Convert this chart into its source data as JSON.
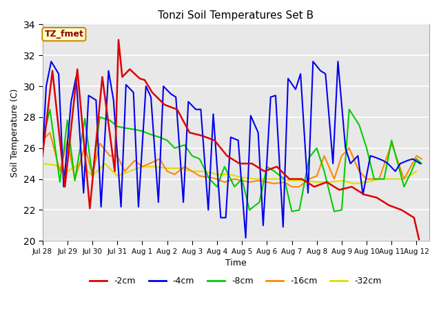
{
  "title": "Tonzi Soil Temperatures Set B",
  "xlabel": "Time",
  "ylabel": "Soil Temperature (C)",
  "ylim": [
    20,
    34
  ],
  "xlim": [
    0,
    15.5
  ],
  "annotation_text": "TZ_fmet",
  "fig_bg_color": "#ffffff",
  "plot_bg_color": "#e8e8e8",
  "tick_labels": [
    "Jul 28",
    "Jul 29",
    "Jul 30",
    "Jul 31",
    "Aug 1",
    "Aug 2",
    "Aug 3",
    "Aug 4",
    "Aug 5",
    "Aug 6",
    "Aug 7",
    "Aug 8",
    "Aug 9",
    "Aug 10",
    "Aug 11",
    "Aug 12"
  ],
  "tick_positions": [
    0,
    1,
    2,
    3,
    4,
    5,
    6,
    7,
    8,
    9,
    10,
    11,
    12,
    13,
    14,
    15
  ],
  "yticks": [
    20,
    22,
    24,
    26,
    28,
    30,
    32,
    34
  ],
  "series": {
    "neg2cm": {
      "color": "#dd0000",
      "label": "-2cm",
      "x": [
        0.0,
        0.4,
        0.9,
        1.4,
        1.9,
        2.4,
        2.9,
        3.05,
        3.2,
        3.5,
        3.9,
        4.1,
        4.4,
        4.9,
        5.4,
        5.9,
        6.4,
        6.9,
        7.4,
        7.9,
        8.4,
        8.9,
        9.4,
        9.9,
        10.4,
        10.9,
        11.4,
        11.9,
        12.4,
        12.9,
        13.4,
        13.9,
        14.4,
        14.9,
        15.1
      ],
      "y": [
        25.5,
        31.0,
        23.5,
        31.1,
        22.1,
        30.6,
        24.5,
        33.0,
        30.6,
        31.1,
        30.5,
        30.4,
        29.6,
        28.8,
        28.5,
        27.0,
        26.8,
        26.5,
        25.5,
        25.0,
        25.0,
        24.5,
        24.8,
        24.0,
        24.0,
        23.5,
        23.8,
        23.3,
        23.5,
        23.0,
        22.8,
        22.3,
        22.0,
        21.5,
        20.1
      ]
    },
    "neg4cm": {
      "color": "#0000ee",
      "label": "-4cm",
      "x": [
        0.0,
        0.15,
        0.35,
        0.65,
        0.85,
        1.15,
        1.35,
        1.65,
        1.85,
        2.15,
        2.35,
        2.65,
        2.85,
        3.15,
        3.35,
        3.65,
        3.85,
        4.15,
        4.35,
        4.65,
        4.85,
        5.15,
        5.35,
        5.65,
        5.85,
        6.15,
        6.35,
        6.65,
        6.85,
        7.15,
        7.35,
        7.55,
        7.85,
        8.15,
        8.35,
        8.65,
        8.85,
        9.15,
        9.35,
        9.65,
        9.85,
        10.15,
        10.35,
        10.65,
        10.85,
        11.15,
        11.35,
        11.65,
        11.85,
        12.15,
        12.35,
        12.65,
        12.85,
        13.15,
        13.35,
        13.65,
        13.85,
        14.15,
        14.35,
        14.65,
        14.85,
        15.15
      ],
      "y": [
        25.5,
        30.0,
        31.6,
        30.8,
        23.5,
        29.0,
        30.6,
        23.1,
        29.4,
        29.1,
        22.2,
        31.0,
        29.1,
        22.2,
        30.1,
        29.6,
        22.2,
        30.0,
        29.3,
        22.5,
        30.0,
        29.5,
        29.3,
        22.5,
        29.0,
        28.5,
        28.5,
        22.0,
        28.2,
        21.5,
        21.5,
        26.7,
        26.5,
        20.2,
        28.1,
        27.0,
        21.0,
        29.3,
        29.4,
        20.9,
        30.5,
        29.8,
        30.8,
        23.1,
        31.6,
        31.0,
        30.8,
        25.0,
        31.6,
        26.0,
        25.0,
        25.5,
        23.0,
        25.5,
        25.4,
        25.2,
        25.0,
        24.5,
        25.0,
        25.2,
        25.3,
        25.0
      ]
    },
    "neg8cm": {
      "color": "#00cc00",
      "label": "-8cm",
      "x": [
        0.0,
        0.3,
        0.7,
        1.0,
        1.3,
        1.7,
        2.0,
        2.3,
        2.7,
        3.0,
        3.3,
        3.7,
        4.0,
        4.3,
        4.7,
        5.0,
        5.3,
        5.7,
        6.0,
        6.3,
        6.7,
        7.0,
        7.3,
        7.7,
        8.0,
        8.3,
        8.7,
        9.0,
        9.3,
        9.7,
        10.0,
        10.3,
        10.7,
        11.0,
        11.3,
        11.7,
        12.0,
        12.3,
        12.7,
        13.0,
        13.3,
        13.7,
        14.0,
        14.5,
        14.8,
        15.0,
        15.2
      ],
      "y": [
        26.5,
        28.5,
        23.8,
        27.8,
        23.9,
        27.9,
        24.2,
        28.0,
        27.8,
        27.4,
        27.3,
        27.2,
        27.1,
        26.9,
        26.7,
        26.5,
        26.0,
        26.2,
        25.5,
        25.3,
        24.0,
        23.5,
        24.8,
        23.5,
        24.0,
        22.0,
        22.5,
        24.8,
        24.5,
        24.0,
        21.9,
        22.0,
        25.4,
        26.0,
        24.5,
        21.9,
        22.0,
        28.5,
        27.5,
        26.0,
        24.0,
        24.0,
        26.5,
        23.5,
        24.5,
        25.3,
        25.0
      ]
    },
    "neg16cm": {
      "color": "#ff8800",
      "label": "-16cm",
      "x": [
        0.0,
        0.3,
        0.7,
        1.0,
        1.3,
        1.7,
        2.0,
        2.3,
        2.7,
        3.0,
        3.3,
        3.7,
        4.0,
        4.3,
        4.7,
        5.0,
        5.3,
        5.7,
        6.0,
        6.3,
        6.7,
        7.0,
        7.3,
        7.7,
        8.0,
        8.3,
        8.7,
        9.0,
        9.3,
        9.7,
        10.0,
        10.3,
        10.7,
        11.0,
        11.3,
        11.7,
        12.0,
        12.3,
        12.7,
        13.0,
        13.5,
        14.0,
        14.5,
        15.0,
        15.2
      ],
      "y": [
        26.5,
        27.0,
        24.5,
        26.5,
        24.0,
        26.1,
        24.3,
        26.3,
        25.5,
        25.5,
        24.5,
        25.2,
        24.8,
        25.0,
        25.3,
        24.5,
        24.3,
        24.8,
        24.5,
        24.2,
        24.1,
        24.0,
        23.8,
        24.0,
        23.9,
        23.8,
        23.9,
        23.8,
        23.7,
        23.8,
        23.5,
        23.5,
        24.0,
        24.2,
        25.5,
        24.0,
        25.5,
        26.0,
        24.5,
        24.0,
        24.0,
        26.3,
        24.0,
        25.5,
        25.3
      ]
    },
    "neg32cm": {
      "color": "#dddd00",
      "label": "-32cm",
      "x": [
        0.0,
        0.5,
        1.0,
        1.5,
        2.0,
        2.5,
        3.0,
        3.5,
        4.0,
        4.5,
        5.0,
        5.5,
        6.0,
        6.5,
        7.0,
        7.5,
        8.0,
        8.5,
        9.0,
        9.5,
        10.0,
        10.5,
        11.0,
        11.5,
        12.0,
        12.5,
        13.0,
        13.5,
        14.0,
        14.5,
        15.0
      ],
      "y": [
        25.0,
        24.9,
        24.5,
        25.0,
        24.2,
        25.0,
        24.2,
        24.5,
        24.8,
        24.8,
        24.7,
        24.7,
        24.5,
        24.5,
        24.3,
        24.3,
        24.1,
        24.0,
        24.0,
        24.0,
        23.9,
        23.9,
        23.8,
        23.8,
        23.9,
        23.7,
        23.8,
        24.0,
        24.0,
        24.0,
        24.5
      ]
    }
  }
}
